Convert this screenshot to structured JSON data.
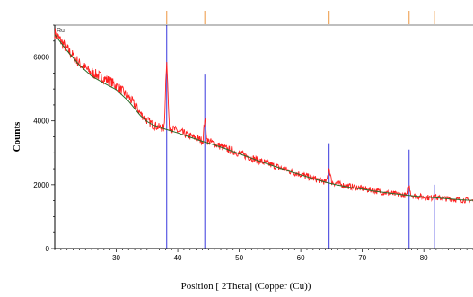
{
  "chart_data": {
    "type": "line",
    "title": "",
    "xlabel": "Position [  2Theta] (Copper (Cu))",
    "ylabel": "Counts",
    "corner_label": "Ru",
    "xlim": [
      20,
      88
    ],
    "ylim": [
      0,
      7000
    ],
    "x_ticks": [
      30,
      40,
      50,
      60,
      70,
      80
    ],
    "y_ticks": [
      0,
      2000,
      4000,
      6000
    ],
    "grid": false,
    "colors": {
      "measured": "#ff2020",
      "fit": "#2a6a2a",
      "reference": "#4a4ae0",
      "top_markers": "#f0a860"
    },
    "series": [
      {
        "kind": "measured",
        "x": [
          20,
          22,
          24,
          26,
          27,
          28,
          29,
          30,
          31,
          32,
          33,
          34,
          35,
          36,
          37,
          37.8,
          38.2,
          38.6,
          39.5,
          41,
          43,
          44.1,
          44.4,
          44.8,
          46,
          48,
          50,
          52,
          54,
          56,
          58,
          60,
          62,
          64.2,
          64.6,
          65,
          67,
          70,
          73,
          75,
          77.3,
          77.6,
          78,
          80,
          81.4,
          81.7,
          82,
          84,
          86,
          88
        ],
        "y": [
          6750,
          6250,
          5800,
          5500,
          5430,
          5330,
          5240,
          5100,
          4930,
          4750,
          4500,
          4220,
          4020,
          3880,
          3790,
          3760,
          6050,
          3800,
          3720,
          3600,
          3450,
          3380,
          4100,
          3380,
          3280,
          3120,
          2980,
          2840,
          2700,
          2570,
          2440,
          2320,
          2200,
          2080,
          2550,
          2080,
          1980,
          1880,
          1780,
          1720,
          1660,
          1980,
          1660,
          1620,
          1590,
          1780,
          1590,
          1560,
          1530,
          1500
        ]
      },
      {
        "kind": "fit",
        "x": [
          20,
          22,
          24,
          26,
          28,
          30,
          32,
          33,
          34,
          35,
          36,
          38,
          40,
          42,
          44,
          46,
          48,
          50,
          52,
          54,
          56,
          58,
          60,
          62,
          64,
          66,
          68,
          70,
          72,
          74,
          76,
          78,
          80,
          82,
          84,
          86,
          88
        ],
        "y": [
          6700,
          6200,
          5750,
          5400,
          5180,
          4980,
          4620,
          4380,
          4150,
          3980,
          3870,
          3740,
          3620,
          3490,
          3360,
          3240,
          3110,
          2970,
          2830,
          2690,
          2560,
          2430,
          2310,
          2190,
          2080,
          1990,
          1920,
          1860,
          1800,
          1750,
          1700,
          1660,
          1620,
          1590,
          1560,
          1530,
          1510
        ]
      },
      {
        "kind": "reference",
        "x": [
          38.2,
          44.4,
          64.6,
          77.6,
          81.7
        ],
        "y": [
          7000,
          5450,
          3300,
          3100,
          2000
        ]
      }
    ],
    "top_markers_x": [
      38.2,
      44.4,
      64.6,
      77.6,
      81.7
    ]
  }
}
